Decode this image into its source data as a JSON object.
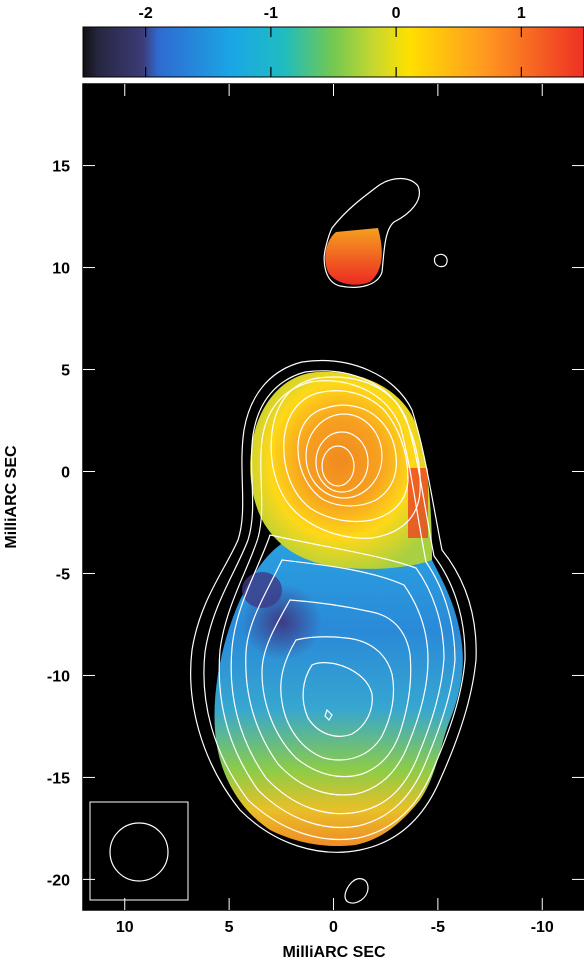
{
  "chart_data": {
    "type": "heatmap",
    "title": "",
    "xlabel": "MilliARC SEC",
    "ylabel": "MilliARC SEC",
    "x_direction": "reversed",
    "xlim": [
      12,
      -12
    ],
    "ylim": [
      -21.5,
      19
    ],
    "x_ticks": [
      10,
      5,
      0,
      -5,
      -10
    ],
    "x_tick_labels": [
      "10",
      "5",
      "0",
      "-5",
      "-10"
    ],
    "y_ticks": [
      15,
      10,
      5,
      0,
      -5,
      -10,
      -15,
      -20
    ],
    "y_tick_labels": [
      "15",
      "10",
      "5",
      "0",
      "-5",
      "-10",
      "-15",
      "-20"
    ],
    "background": "#000000",
    "grid": false,
    "colorbar": {
      "position": "top",
      "range": [
        -2.5,
        1.5
      ],
      "ticks": [
        -2,
        -1,
        0,
        1
      ],
      "tick_labels": [
        "-2",
        "-1",
        "0",
        "1"
      ],
      "colors": [
        "#1a1a1a",
        "#3a3a6e",
        "#2aa0e0",
        "#1fb8c0",
        "#7ec850",
        "#ffe000",
        "#ffb020",
        "#f05020",
        "#e82020"
      ]
    },
    "regions": [
      {
        "name": "northern component",
        "x_range": [
          -2,
          0.5
        ],
        "y_range": [
          9,
          11.5
        ],
        "value": 1.3
      },
      {
        "name": "core",
        "center": [
          0,
          0
        ],
        "value": 0.9
      },
      {
        "name": "jet middle",
        "center": [
          -2,
          -7
        ],
        "value": -1.0
      },
      {
        "name": "jet southern edge",
        "center": [
          0,
          -16
        ],
        "value": 0.5
      }
    ],
    "contours": [
      {
        "name": "outer contour",
        "level": 1
      },
      {
        "name": "inner contours",
        "count": 9
      },
      {
        "name": "northern contour",
        "center": [
          -1.5,
          11.5
        ]
      }
    ],
    "beam": {
      "center": [
        9.5,
        -18.7
      ],
      "diameter": 2.8
    }
  }
}
